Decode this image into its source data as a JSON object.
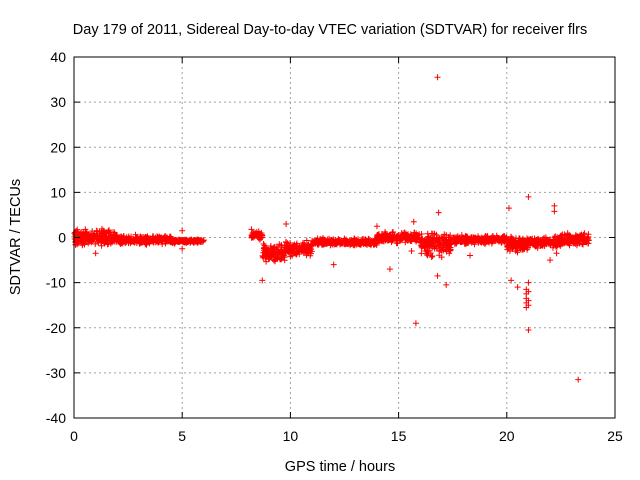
{
  "chart_data": {
    "type": "scatter",
    "title": "Day 179 of 2011, Sidereal Day-to-day VTEC variation (SDTVAR) for receiver flrs",
    "xlabel": "GPS time / hours",
    "ylabel": "SDTVAR / TECUs",
    "xlim": [
      0,
      25
    ],
    "ylim": [
      -40,
      40
    ],
    "xticks": [
      0,
      5,
      10,
      15,
      20,
      25
    ],
    "yticks": [
      -40,
      -30,
      -20,
      -10,
      0,
      10,
      20,
      30,
      40
    ],
    "grid": true,
    "marker": "+",
    "series_color": "#ff0000",
    "series": [
      {
        "name": "SDTVAR",
        "bands": [
          {
            "x0": 0.0,
            "x1": 2.0,
            "center": 0.0,
            "spread": 2.2
          },
          {
            "x0": 2.0,
            "x1": 4.5,
            "center": -0.5,
            "spread": 1.2
          },
          {
            "x0": 4.5,
            "x1": 6.0,
            "center": -0.8,
            "spread": 0.6
          },
          {
            "x0": 8.2,
            "x1": 8.7,
            "center": 0.5,
            "spread": 1.2
          },
          {
            "x0": 8.7,
            "x1": 9.8,
            "center": -3.5,
            "spread": 3.0
          },
          {
            "x0": 9.8,
            "x1": 11.0,
            "center": -2.5,
            "spread": 2.0
          },
          {
            "x0": 11.0,
            "x1": 14.0,
            "center": -1.0,
            "spread": 1.0
          },
          {
            "x0": 14.0,
            "x1": 16.0,
            "center": 0.0,
            "spread": 1.5
          },
          {
            "x0": 16.0,
            "x1": 17.5,
            "center": -1.5,
            "spread": 3.5
          },
          {
            "x0": 17.5,
            "x1": 20.0,
            "center": -0.5,
            "spread": 1.2
          },
          {
            "x0": 20.0,
            "x1": 21.0,
            "center": -1.5,
            "spread": 2.5
          },
          {
            "x0": 21.0,
            "x1": 22.5,
            "center": -1.0,
            "spread": 1.5
          },
          {
            "x0": 22.5,
            "x1": 23.8,
            "center": -0.5,
            "spread": 2.0
          }
        ],
        "outliers": [
          {
            "x": 16.8,
            "y": 35.5
          },
          {
            "x": 21.0,
            "y": 9.0
          },
          {
            "x": 22.2,
            "y": 7.0
          },
          {
            "x": 22.2,
            "y": 5.8
          },
          {
            "x": 20.1,
            "y": 6.5
          },
          {
            "x": 16.85,
            "y": 5.5
          },
          {
            "x": 15.8,
            "y": -19.0
          },
          {
            "x": 21.0,
            "y": -20.5
          },
          {
            "x": 23.3,
            "y": -31.5
          },
          {
            "x": 8.7,
            "y": -9.5
          },
          {
            "x": 9.8,
            "y": 3.0
          },
          {
            "x": 14.6,
            "y": -7.0
          },
          {
            "x": 14.0,
            "y": 2.5
          },
          {
            "x": 15.6,
            "y": -3.0
          },
          {
            "x": 15.7,
            "y": 3.5
          },
          {
            "x": 16.8,
            "y": -8.5
          },
          {
            "x": 17.2,
            "y": -10.5
          },
          {
            "x": 20.2,
            "y": -9.5
          },
          {
            "x": 20.5,
            "y": -11.0
          },
          {
            "x": 20.9,
            "y": -11.5
          },
          {
            "x": 20.9,
            "y": -12.5
          },
          {
            "x": 20.9,
            "y": -13.5
          },
          {
            "x": 20.9,
            "y": -14.5
          },
          {
            "x": 20.9,
            "y": -15.5
          },
          {
            "x": 21.0,
            "y": -10.0
          },
          {
            "x": 21.0,
            "y": -12.0
          },
          {
            "x": 21.0,
            "y": -14.0
          },
          {
            "x": 21.0,
            "y": -15.0
          },
          {
            "x": 22.0,
            "y": -5.0
          },
          {
            "x": 22.3,
            "y": -3.5
          },
          {
            "x": 1.0,
            "y": -3.5
          },
          {
            "x": 5.0,
            "y": 1.5
          },
          {
            "x": 5.0,
            "y": -2.5
          },
          {
            "x": 12.0,
            "y": -6.0
          },
          {
            "x": 18.3,
            "y": -4.0
          },
          {
            "x": 8.2,
            "y": 1.8
          }
        ]
      }
    ]
  }
}
